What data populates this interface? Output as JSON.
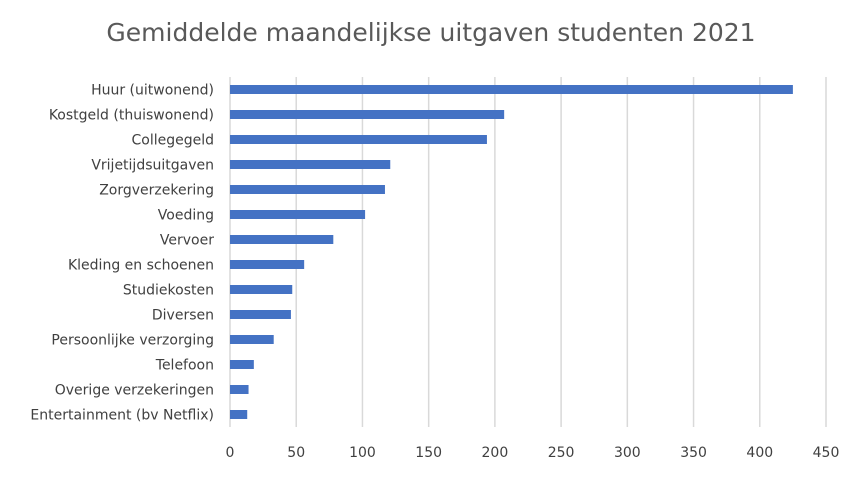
{
  "chart_data": {
    "type": "bar",
    "orientation": "horizontal",
    "title": "Gemiddelde maandelijkse uitgaven studenten 2021",
    "xlabel": "",
    "ylabel": "",
    "categories": [
      "Huur (uitwonend)",
      "Kostgeld (thuiswonend)",
      "Collegegeld",
      "Vrijetijdsuitgaven",
      "Zorgverzekering",
      "Voeding",
      "Vervoer",
      "Kleding en schoenen",
      "Studiekosten",
      "Diversen",
      "Persoonlijke verzorging",
      "Telefoon",
      "Overige verzekeringen",
      "Entertainment (bv Netflix)"
    ],
    "values": [
      425,
      207,
      194,
      121,
      117,
      102,
      78,
      56,
      47,
      46,
      33,
      18,
      14,
      13
    ],
    "xlim": [
      0,
      450
    ],
    "xticks": [
      "0",
      "50",
      "100",
      "150",
      "200",
      "250",
      "300",
      "350",
      "400",
      "450"
    ],
    "grid": true,
    "bar_color": "#4472c4",
    "grid_color": "#d9d9d9"
  }
}
